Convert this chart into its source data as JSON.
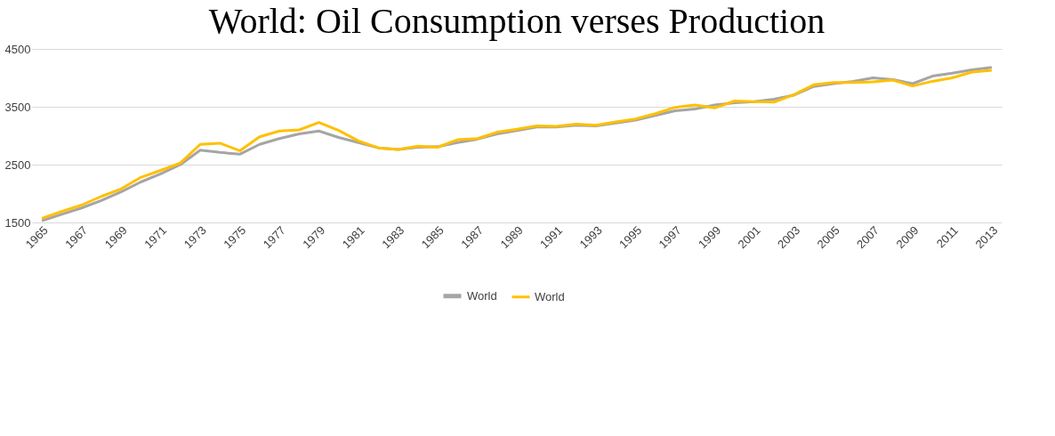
{
  "chart_data": {
    "type": "line",
    "title": "World: Oil Consumption verses Production",
    "categories": [
      "1965",
      null,
      "1967",
      null,
      "1969",
      null,
      "1971",
      null,
      "1973",
      null,
      "1975",
      null,
      "1977",
      null,
      "1979",
      null,
      "1981",
      null,
      "1983",
      null,
      "1985",
      null,
      "1987",
      null,
      "1989",
      null,
      "1991",
      null,
      "1993",
      null,
      "1995",
      null,
      "1997",
      null,
      "1999",
      null,
      "2001",
      null,
      "2003",
      null,
      "2005",
      null,
      "2007",
      null,
      "2009",
      null,
      "2011",
      null,
      "2013"
    ],
    "series": [
      {
        "name": "World",
        "color": "#a5a5a5",
        "values": [
          1530,
          1640,
          1750,
          1880,
          2030,
          2200,
          2340,
          2500,
          2750,
          2710,
          2680,
          2850,
          2950,
          3030,
          3080,
          2970,
          2880,
          2790,
          2760,
          2800,
          2810,
          2880,
          2940,
          3030,
          3090,
          3150,
          3150,
          3180,
          3170,
          3220,
          3270,
          3350,
          3430,
          3460,
          3530,
          3570,
          3590,
          3630,
          3700,
          3850,
          3900,
          3940,
          4000,
          3970,
          3900,
          4030,
          4080,
          4140,
          4180
        ]
      },
      {
        "name": "World",
        "color": "#ffc000",
        "values": [
          1570,
          1690,
          1800,
          1950,
          2080,
          2280,
          2400,
          2530,
          2850,
          2870,
          2740,
          2980,
          3080,
          3100,
          3230,
          3090,
          2910,
          2790,
          2760,
          2820,
          2800,
          2930,
          2950,
          3060,
          3110,
          3170,
          3160,
          3200,
          3180,
          3240,
          3290,
          3380,
          3490,
          3530,
          3480,
          3600,
          3590,
          3580,
          3710,
          3880,
          3920,
          3920,
          3930,
          3960,
          3860,
          3940,
          4000,
          4100,
          4130
        ]
      }
    ],
    "ylim": [
      1500,
      4500
    ],
    "yticks": [
      1500,
      2500,
      3500,
      4500
    ],
    "grid": "y",
    "legend": "bottom",
    "line_style": "solid",
    "marker": "none"
  }
}
